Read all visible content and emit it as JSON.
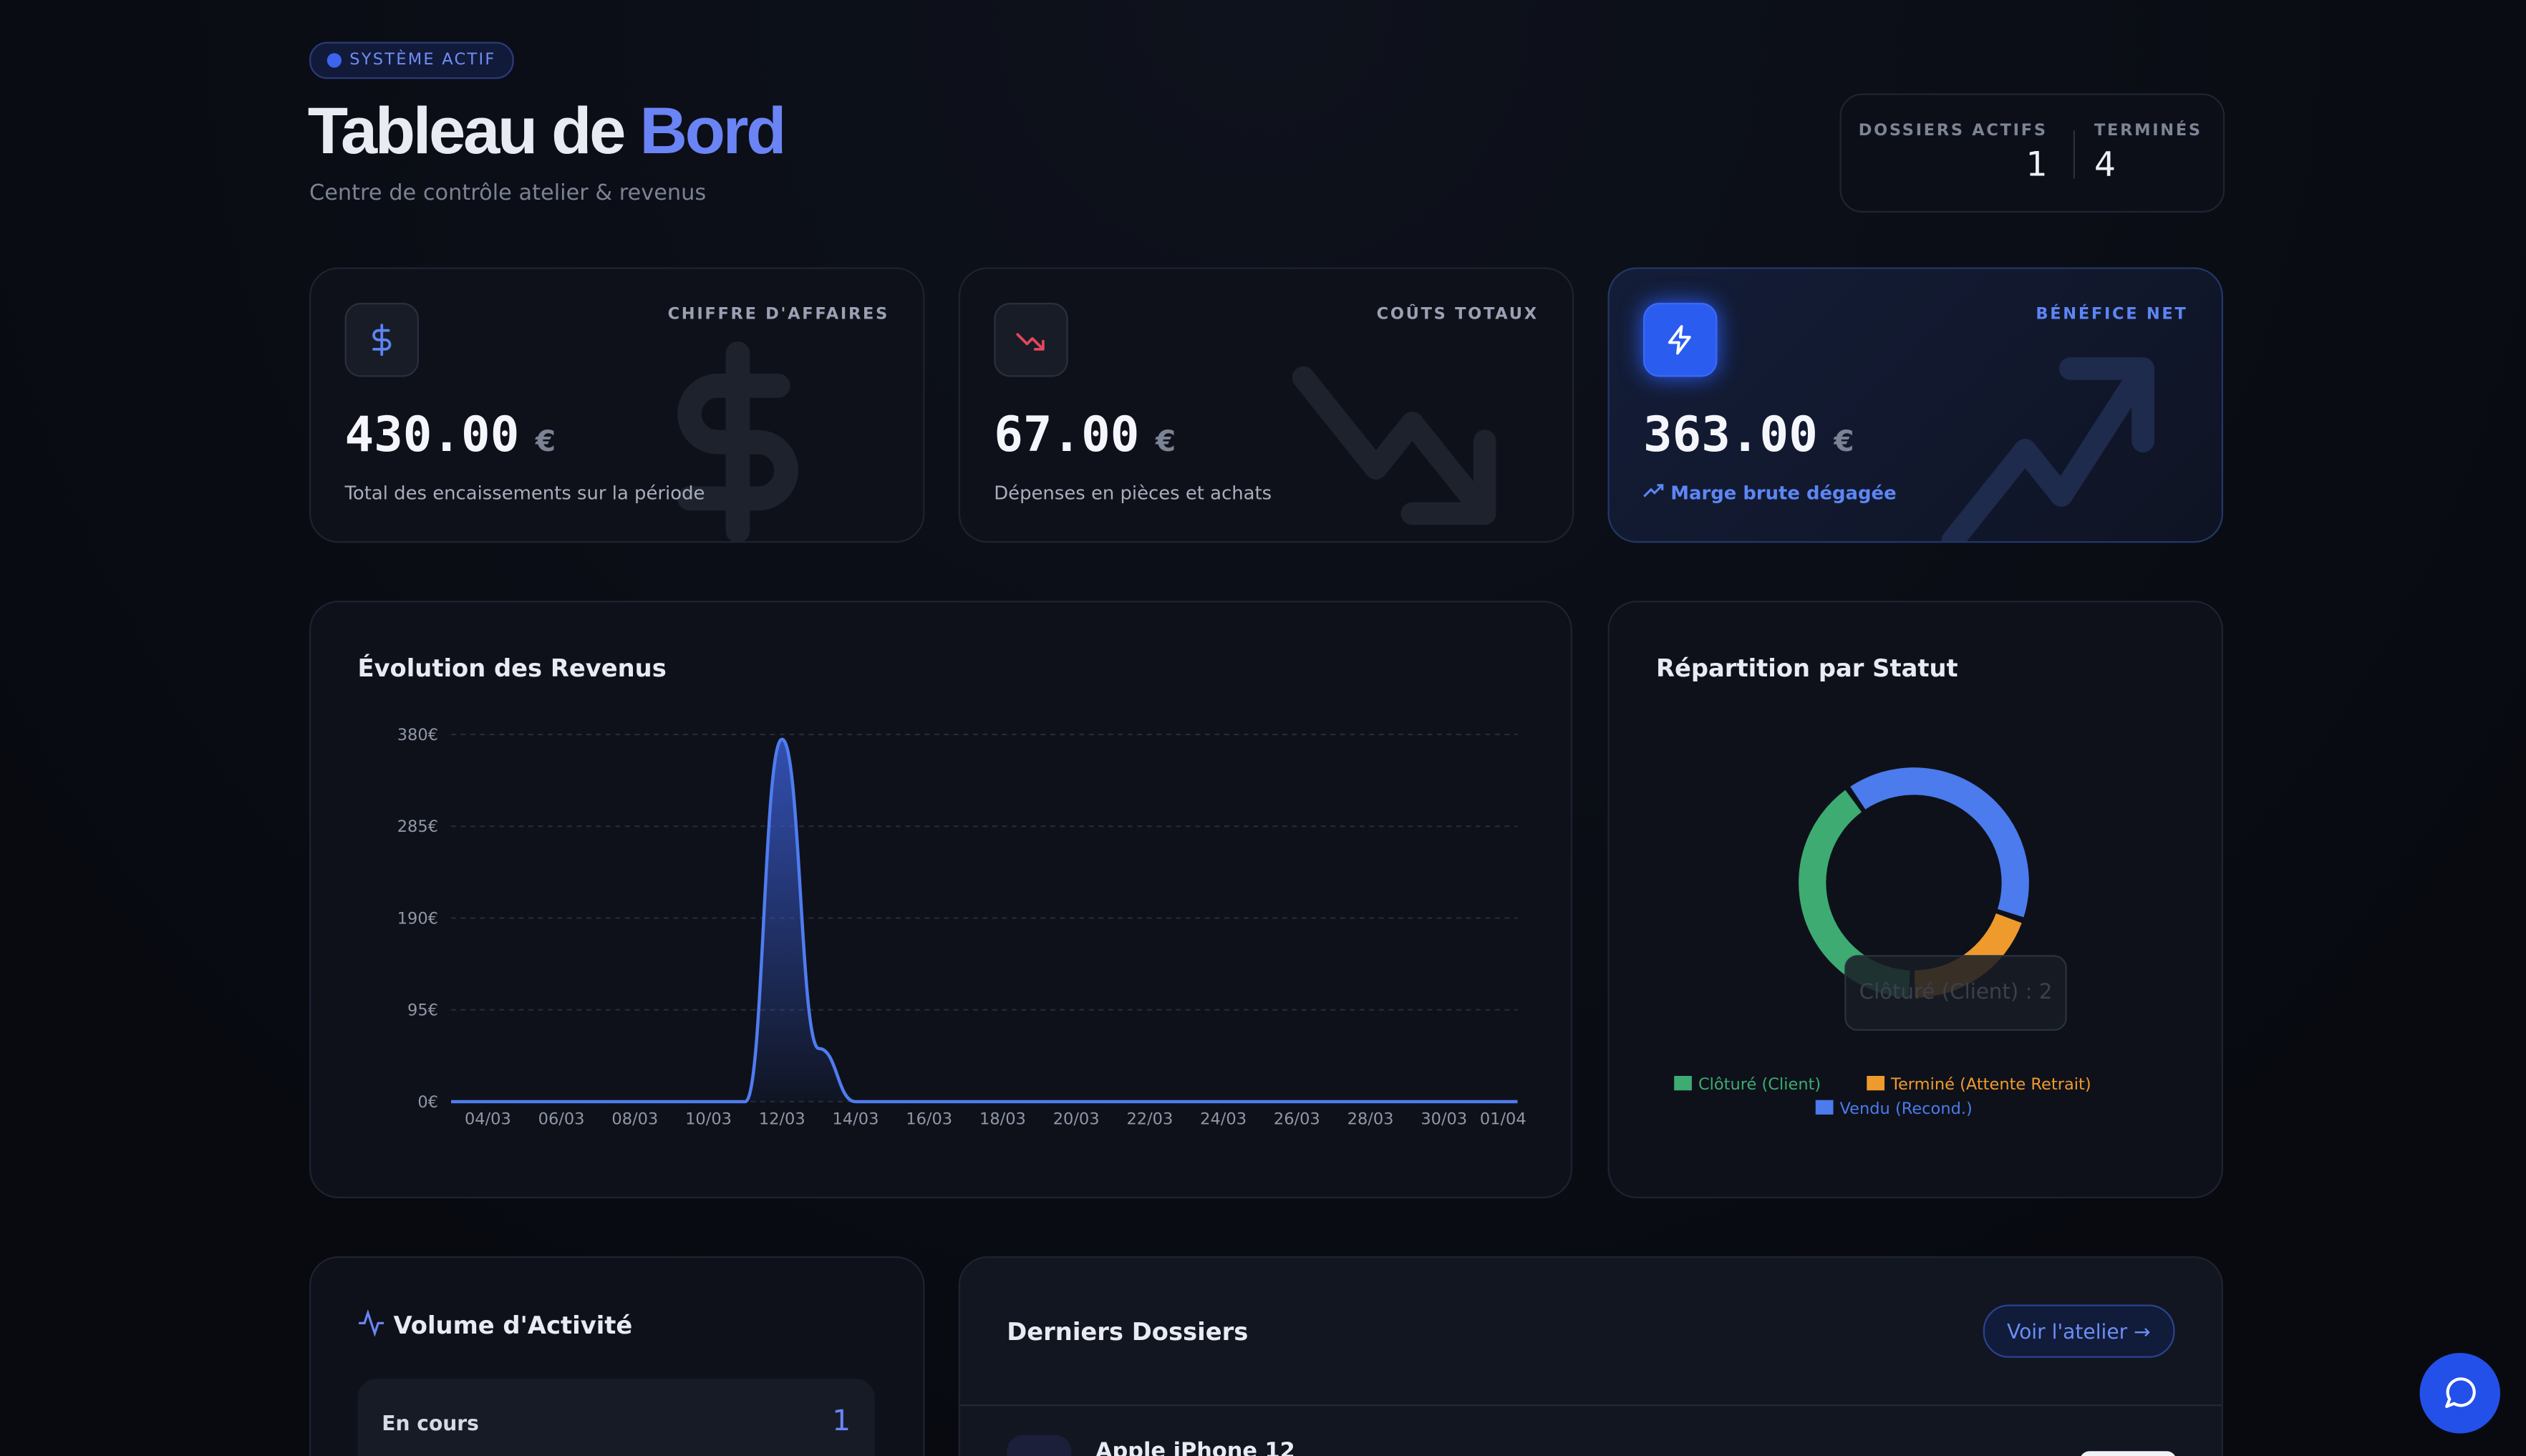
{
  "header": {
    "badge": "SYSTÈME ACTIF",
    "title_main": "Tableau de",
    "title_accent": "Bord",
    "subtitle": "Centre de contrôle atelier & revenus"
  },
  "stats": [
    {
      "label": "DOSSIERS ACTIFS",
      "value": 1
    },
    {
      "label": "TERMINÉS",
      "value": 4
    }
  ],
  "kpis": [
    {
      "label": "CHIFFRE D'AFFAIRES",
      "value": "430.00",
      "unit": "€",
      "caption": "Total des encaissements sur la période"
    },
    {
      "label": "COÛTS TOTAUX",
      "value": "67.00",
      "unit": "€",
      "caption": "Dépenses en pièces et achats"
    },
    {
      "label": "BÉNÉFICE NET",
      "value": "363.00",
      "unit": "€",
      "caption": "Marge brute dégagée"
    }
  ],
  "chart_data": [
    {
      "type": "area",
      "title": "Évolution des Revenus",
      "categories": [
        null,
        "04/03",
        null,
        "06/03",
        null,
        "08/03",
        null,
        "10/03",
        null,
        "12/03",
        null,
        "14/03",
        null,
        "16/03",
        null,
        "18/03",
        null,
        "20/03",
        null,
        "22/03",
        null,
        "24/03",
        null,
        "26/03",
        null,
        "28/03",
        null,
        "30/03",
        null,
        "01/04"
      ],
      "values": [
        0,
        0,
        0,
        0,
        0,
        0,
        0,
        0,
        0,
        375,
        55,
        0,
        0,
        0,
        0,
        0,
        0,
        0,
        0,
        0,
        0,
        0,
        0,
        0,
        0,
        0,
        0,
        0,
        0,
        0
      ],
      "color": "#4f7cf0",
      "ylim": [
        0,
        380
      ],
      "yticks": [
        {
          "value": 0,
          "label": "0€"
        },
        {
          "value": 95,
          "label": "95€"
        },
        {
          "value": 190,
          "label": "190€"
        },
        {
          "value": 285,
          "label": "285€"
        },
        {
          "value": 380,
          "label": "380€"
        }
      ],
      "grid": true
    },
    {
      "type": "donut",
      "title": "Répartition par Statut",
      "categories": [
        "Clôturé (Client)",
        "Terminé (Attente Retrait)",
        "Vendu (Recond.)"
      ],
      "values": [
        2,
        1,
        2
      ],
      "colors": [
        "#3dab72",
        "#ef9a2c",
        "#4b7bec"
      ],
      "tooltip": "Clôturé (Client) : 2",
      "legend": "bottom"
    }
  ],
  "activity": {
    "title": "Volume d'Activité",
    "rows": [
      {
        "label": "En cours",
        "value": 1
      }
    ]
  },
  "recent": {
    "title": "Derniers Dossiers",
    "link": "Voir l'atelier",
    "items": [
      {
        "name": "Apple iPhone 12"
      }
    ]
  }
}
